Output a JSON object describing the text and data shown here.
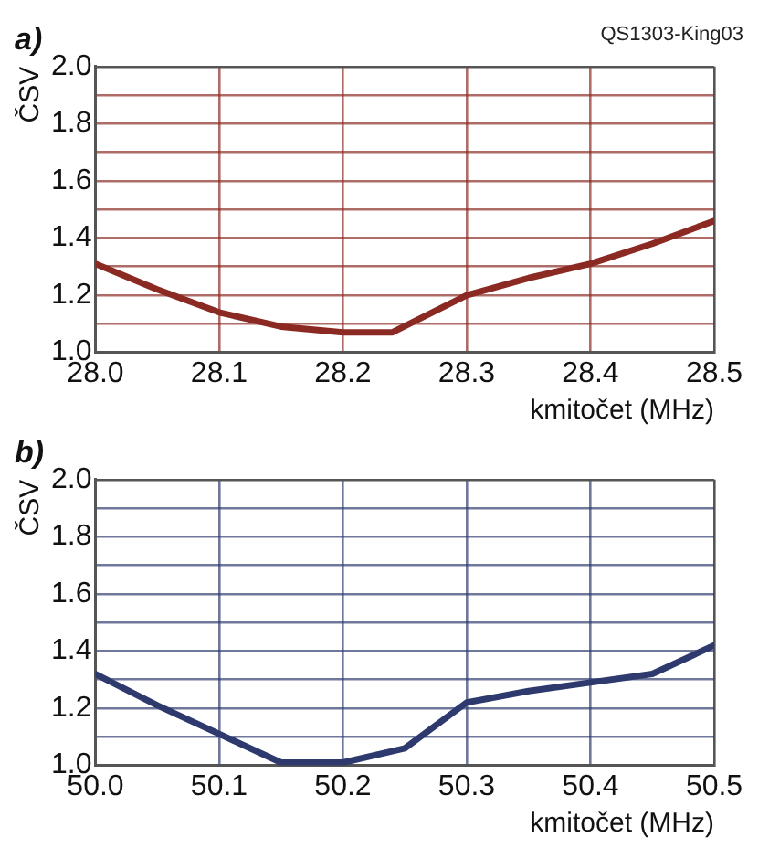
{
  "chart_data": [
    {
      "type": "line",
      "title": "a)",
      "xlabel": "kmitočet (MHz)",
      "ylabel": "ČSV",
      "annotations": [
        "QS1303-King03"
      ],
      "x": [
        28.0,
        28.05,
        28.1,
        28.15,
        28.2,
        28.24,
        28.3,
        28.35,
        28.4,
        28.45,
        28.5
      ],
      "series": [
        {
          "color": "#8b2a23",
          "values": [
            1.31,
            1.22,
            1.14,
            1.09,
            1.07,
            1.07,
            1.2,
            1.26,
            1.31,
            1.38,
            1.46
          ]
        }
      ],
      "xlim": [
        28.0,
        28.5
      ],
      "xticks": [
        {
          "value": 28.0,
          "label": "28.0"
        },
        28.1,
        28.2,
        28.3,
        28.4,
        28.5
      ],
      "ylim": [
        1.0,
        2.0
      ],
      "yticks": [
        {
          "value": 1.0,
          "label": "1.0"
        },
        {
          "value": 1.1,
          "label": null
        },
        1.2,
        {
          "value": 1.3,
          "label": null
        },
        1.4,
        {
          "value": 1.5,
          "label": null
        },
        1.6,
        {
          "value": 1.7,
          "label": null
        },
        1.8,
        {
          "value": 1.9,
          "label": null
        },
        {
          "value": 2.0,
          "label": "2.0"
        }
      ],
      "grid": true,
      "legend": false,
      "marker": "none",
      "line_style": "solid"
    },
    {
      "type": "line",
      "title": "b)",
      "xlabel": "kmitočet (MHz)",
      "ylabel": "ČSV",
      "x": [
        50.0,
        50.05,
        50.1,
        50.15,
        50.2,
        50.25,
        50.3,
        50.35,
        50.4,
        50.45,
        50.5
      ],
      "series": [
        {
          "color": "#2e3a6e",
          "values": [
            1.32,
            1.21,
            1.11,
            1.01,
            1.01,
            1.06,
            1.22,
            1.26,
            1.29,
            1.32,
            1.42
          ]
        }
      ],
      "xlim": [
        50.0,
        50.5
      ],
      "xticks": [
        {
          "value": 50.0,
          "label": "50.0"
        },
        50.1,
        50.2,
        50.3,
        50.4,
        {
          "value": 50.5,
          "label": "50.5"
        }
      ],
      "ylim": [
        1.0,
        2.0
      ],
      "yticks": [
        {
          "value": 1.0,
          "label": "1.0"
        },
        {
          "value": 1.1,
          "label": null
        },
        1.2,
        {
          "value": 1.3,
          "label": null
        },
        1.4,
        {
          "value": 1.5,
          "label": null
        },
        1.6,
        {
          "value": 1.7,
          "label": null
        },
        1.8,
        {
          "value": 1.9,
          "label": null
        },
        {
          "value": 2.0,
          "label": "2.0"
        }
      ],
      "grid": true,
      "legend": false,
      "marker": "none",
      "line_style": "solid"
    }
  ]
}
